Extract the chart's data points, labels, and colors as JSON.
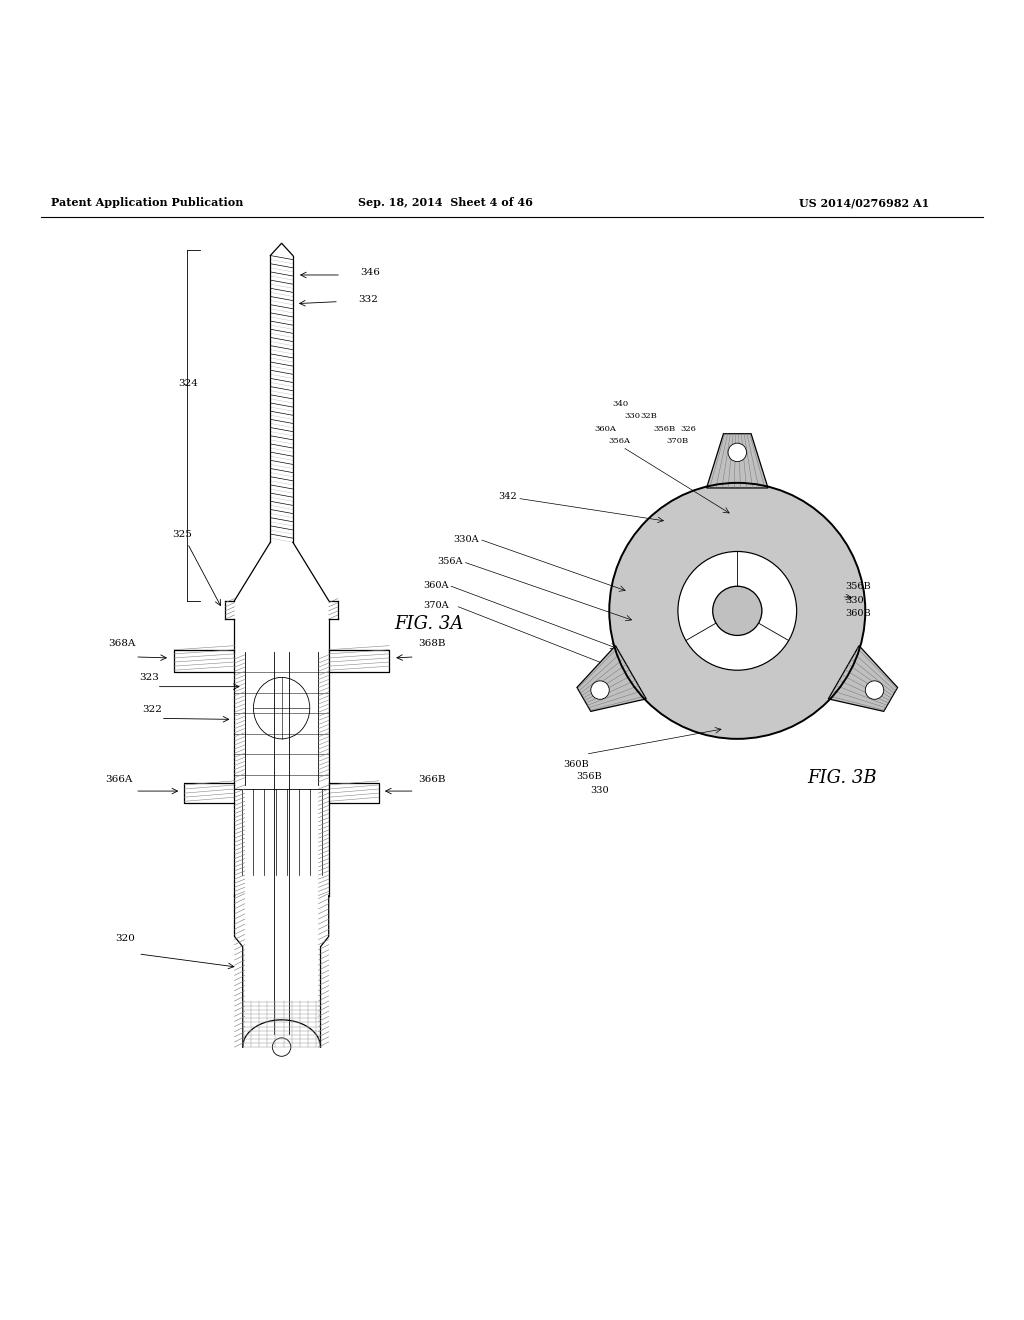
{
  "header_left": "Patent Application Publication",
  "header_mid": "Sep. 18, 2014  Sheet 4 of 46",
  "header_right": "US 2014/0276982 A1",
  "fig3a_label": "FIG. 3A",
  "fig3b_label": "FIG. 3B",
  "background_color": "#ffffff",
  "line_color": "#000000"
}
